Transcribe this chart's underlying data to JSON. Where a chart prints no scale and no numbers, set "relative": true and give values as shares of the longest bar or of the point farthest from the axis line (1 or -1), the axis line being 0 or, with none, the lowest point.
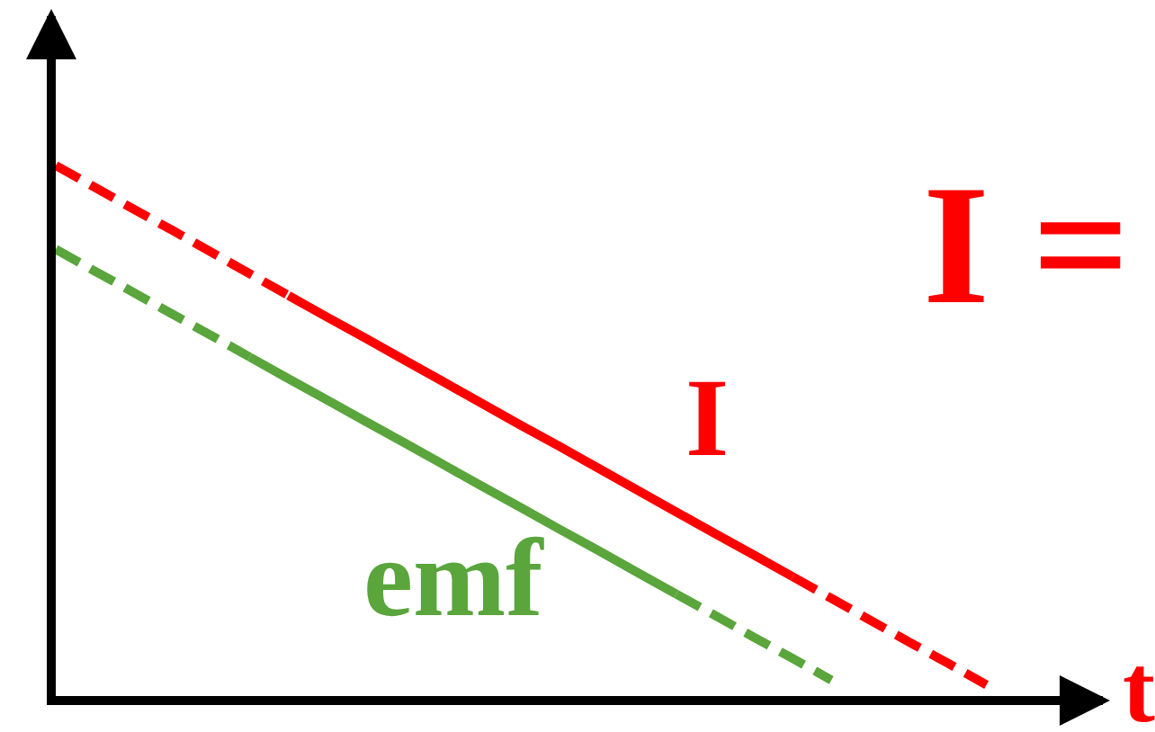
{
  "chart_data": {
    "type": "line",
    "relative": true,
    "xlabel": "t",
    "annotations": [
      "I ="
    ],
    "categories": [
      null,
      null,
      null,
      null,
      null,
      null,
      null,
      null,
      null,
      null,
      null,
      null,
      null,
      null,
      null,
      null,
      null,
      null,
      null,
      null,
      null,
      null,
      null,
      null,
      null,
      null,
      null,
      null
    ],
    "series": [
      {
        "color": "#ff0000",
        "line_style": "dashed",
        "values": [
          1.0,
          0.959,
          0.918,
          0.878,
          0.837,
          0.796,
          0.755,
          null,
          null,
          null,
          null,
          null,
          null,
          null,
          null,
          null,
          null,
          null,
          null,
          null,
          null,
          null,
          null,
          null,
          null,
          null,
          null,
          null
        ]
      },
      {
        "name": "I",
        "color": "#ff0000",
        "line_style": "solid",
        "values": [
          null,
          null,
          null,
          null,
          null,
          null,
          0.755,
          0.714,
          0.674,
          0.633,
          0.592,
          0.551,
          0.51,
          0.47,
          0.429,
          0.388,
          0.347,
          0.306,
          0.266,
          0.225,
          null,
          null,
          null,
          null,
          null,
          null,
          null,
          null
        ]
      },
      {
        "color": "#ff0000",
        "line_style": "dashed",
        "values": [
          null,
          null,
          null,
          null,
          null,
          null,
          null,
          null,
          null,
          null,
          null,
          null,
          null,
          null,
          null,
          null,
          null,
          null,
          null,
          0.225,
          0.184,
          0.143,
          0.102,
          0.062,
          0.021,
          null,
          null,
          null
        ]
      },
      {
        "color": "#5aa53c",
        "line_style": "dashed",
        "values": [
          0.842,
          0.801,
          0.761,
          0.72,
          0.68,
          0.639,
          null,
          null,
          null,
          null,
          null,
          null,
          null,
          null,
          null,
          null,
          null,
          null,
          null,
          null,
          null,
          null,
          null,
          null,
          null,
          null,
          null,
          null
        ]
      },
      {
        "name": "emf",
        "color": "#5aa53c",
        "line_style": "solid",
        "values": [
          null,
          null,
          null,
          null,
          null,
          0.639,
          0.598,
          0.558,
          0.517,
          0.477,
          0.436,
          0.395,
          0.355,
          0.314,
          0.274,
          0.233,
          0.192,
          null,
          null,
          null,
          null,
          null,
          null,
          null,
          null,
          null,
          null,
          null
        ]
      },
      {
        "color": "#5aa53c",
        "line_style": "dashed",
        "values": [
          null,
          null,
          null,
          null,
          null,
          null,
          null,
          null,
          null,
          null,
          null,
          null,
          null,
          null,
          null,
          null,
          0.192,
          0.152,
          0.111,
          0.071,
          0.03,
          null,
          null,
          null,
          null,
          null,
          null,
          null
        ]
      }
    ]
  }
}
